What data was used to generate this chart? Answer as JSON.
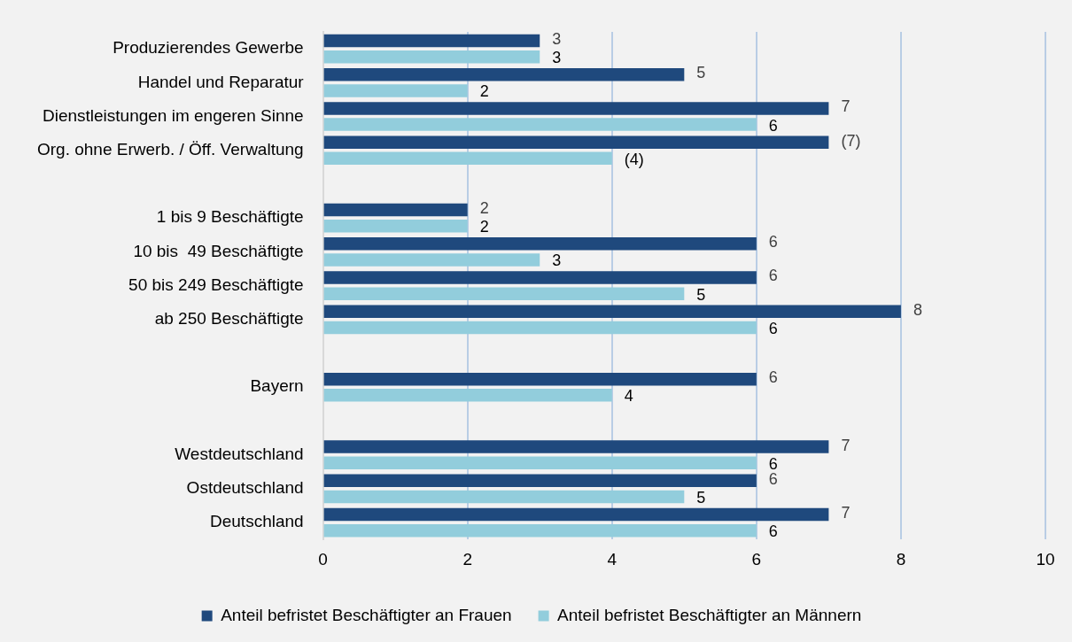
{
  "chart_data": {
    "type": "bar",
    "orientation": "horizontal",
    "categories": [
      "Produzierendes Gewerbe",
      "Handel und Reparatur",
      "Dienstleistungen im engeren Sinne",
      "Org. ohne Erwerb. / Öff. Verwaltung",
      null,
      "1 bis 9 Beschäftigte",
      "10 bis  49 Beschäftigte",
      "50 bis 249 Beschäftigte",
      "ab 250 Beschäftigte",
      null,
      "Bayern",
      null,
      "Westdeutschland",
      "Ostdeutschland",
      "Deutschland"
    ],
    "series": [
      {
        "name": "Anteil befristet Beschäftigter an Frauen",
        "color": "#1f497d",
        "values": [
          3,
          5,
          7,
          7,
          null,
          2,
          6,
          6,
          8,
          null,
          6,
          null,
          7,
          6,
          7
        ],
        "value_labels": [
          "3",
          "5",
          "7",
          "(7)",
          null,
          "2",
          "6",
          "6",
          "8",
          null,
          "6",
          null,
          "7",
          "6",
          "7"
        ]
      },
      {
        "name": "Anteil befristet Beschäftigter an Männern",
        "color": "#92cddc",
        "values": [
          3,
          2,
          6,
          4,
          null,
          2,
          3,
          5,
          6,
          null,
          4,
          null,
          6,
          5,
          6
        ],
        "value_labels": [
          "3",
          "2",
          "6",
          "(4)",
          null,
          "2",
          "3",
          "5",
          "6",
          null,
          "4",
          null,
          "6",
          "5",
          "6"
        ]
      }
    ],
    "xlim": [
      0,
      10
    ],
    "xticks": [
      0,
      2,
      4,
      6,
      8,
      10
    ],
    "grid": "x",
    "legend": "bottom"
  }
}
